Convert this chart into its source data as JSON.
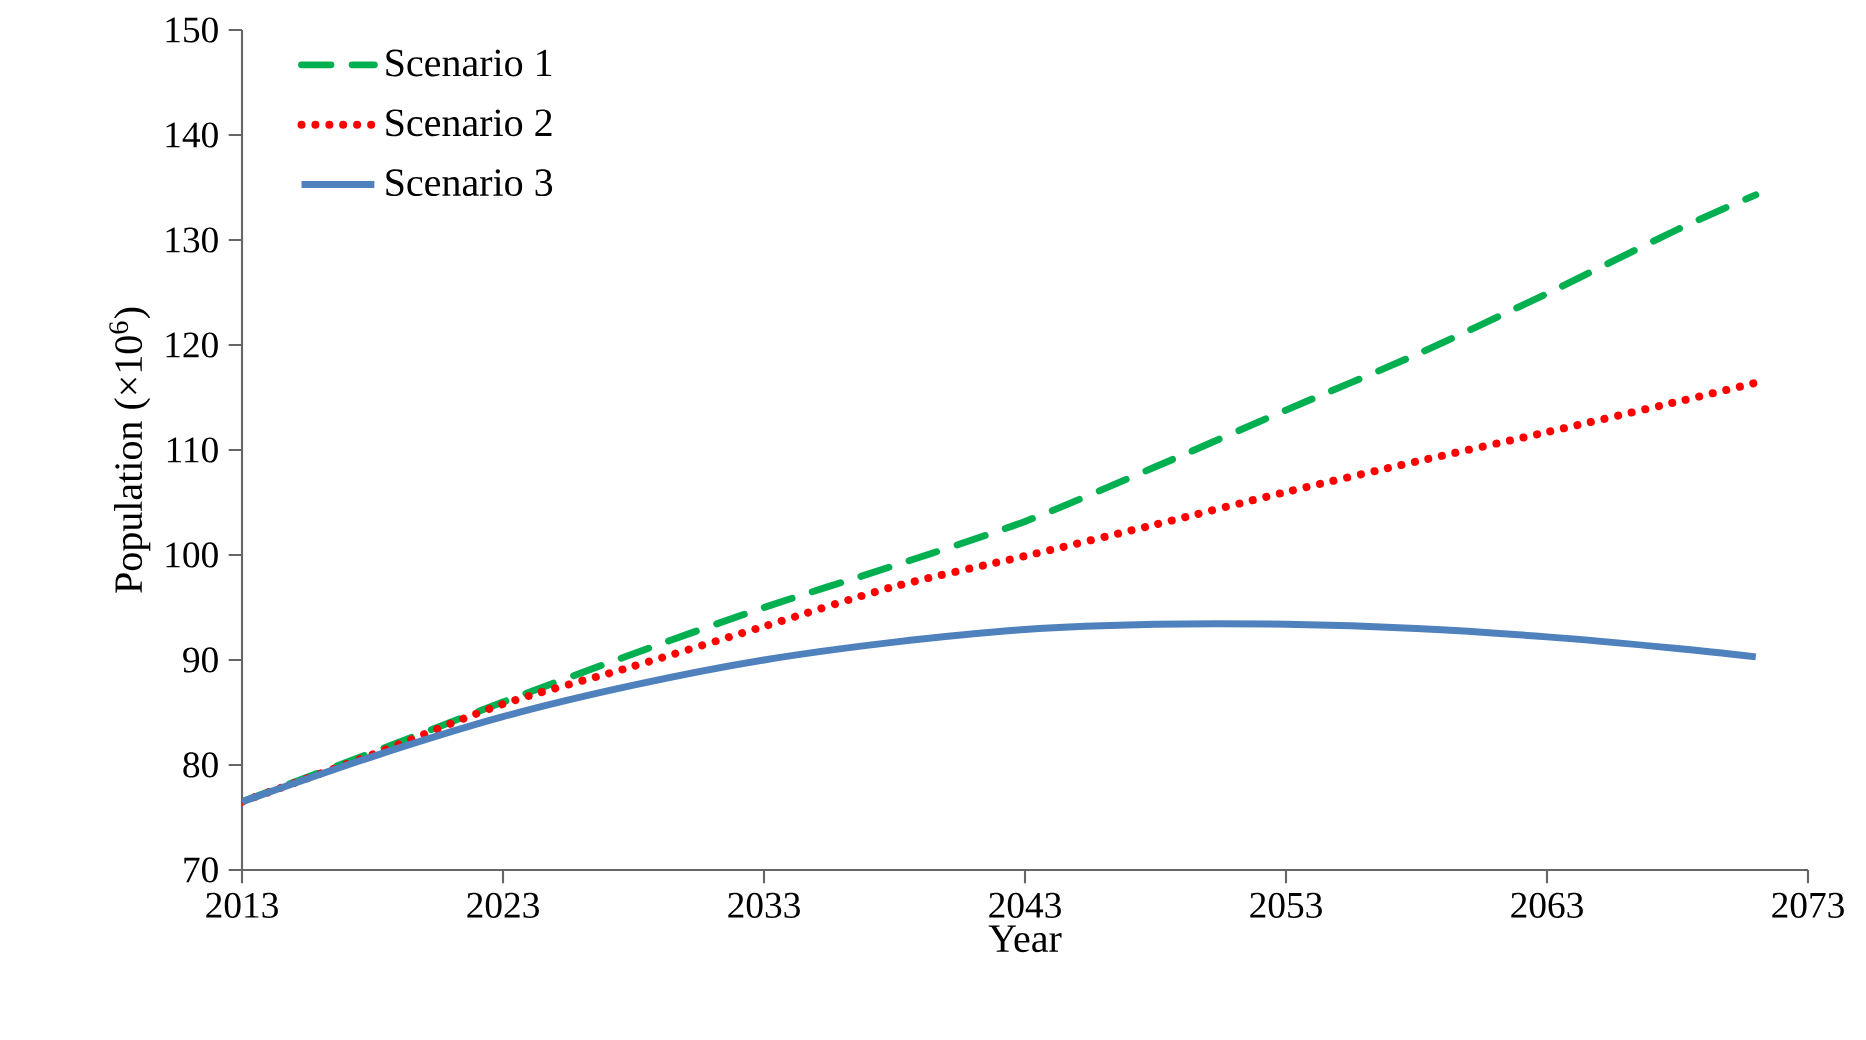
{
  "chart_data": {
    "type": "line",
    "xlabel": "Year",
    "ylabel": "Population (×10$^{6}$)",
    "x": [
      2013,
      2018,
      2023,
      2028,
      2033,
      2038,
      2043,
      2048,
      2053,
      2058,
      2063,
      2068,
      2071
    ],
    "series": [
      {
        "name": "Scenario 1",
        "color": "#00b050",
        "line_style": "dashed",
        "values": [
          76.5,
          81.2,
          86.0,
          90.6,
          95.0,
          99.0,
          103.2,
          108.4,
          113.8,
          119.1,
          124.9,
          131.0,
          134.3
        ]
      },
      {
        "name": "Scenario 2",
        "color": "#ff0000",
        "line_style": "dotted",
        "values": [
          76.5,
          81.0,
          85.8,
          89.4,
          93.2,
          97.0,
          99.9,
          102.9,
          106.0,
          108.9,
          111.7,
          114.6,
          116.4
        ]
      },
      {
        "name": "Scenario 3",
        "color": "#4f81bd",
        "line_style": "solid",
        "values": [
          76.5,
          80.8,
          84.6,
          87.6,
          90.0,
          91.7,
          92.9,
          93.4,
          93.4,
          93.0,
          92.2,
          91.1,
          90.3
        ]
      }
    ],
    "xlim": [
      2013,
      2073
    ],
    "ylim": [
      70,
      150
    ],
    "xticks": [
      2013,
      2023,
      2033,
      2043,
      2053,
      2063,
      2073
    ],
    "yticks": [
      70,
      80,
      90,
      100,
      110,
      120,
      130,
      140,
      150
    ],
    "grid": false,
    "legend": "top left",
    "marker": "none"
  }
}
